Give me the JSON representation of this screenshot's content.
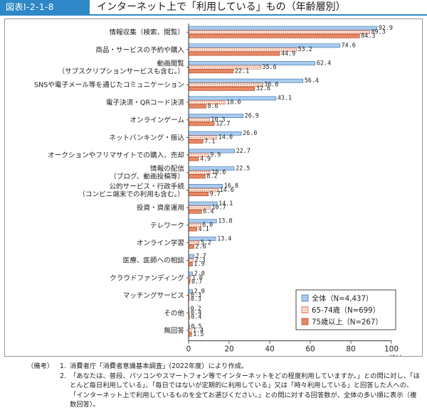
{
  "figure_label": "図表Ⅰ-2-1-8",
  "figure_title": "インターネット上で「利用している」もの（年齢層別）",
  "notes": {
    "key": "（備考）",
    "items": [
      {
        "num": "1.",
        "text": "消費者庁「消費者意識基本調査」(2022年度）により作成。"
      },
      {
        "num": "2.",
        "text": "「あなたは、普段、パソコンやスマートフォン等でインターネットをどの程度利用していますか。」との問に対し、「ほとんど毎日利用している」、「毎日ではないが定期的に利用している」又は「時々利用している」と回答した人への、「インターネット上で利用しているものを全てお選びください。」との問に対する回答数が、全体の多い順に表示（複数回答）。"
      }
    ]
  },
  "chart_data": {
    "type": "bar",
    "orientation": "horizontal",
    "categories": [
      [
        "情報収集（検索、閲覧）"
      ],
      [
        "商品・サービスの予約や購入"
      ],
      [
        "動画閲覧",
        "（サブスクリプションサービスも含む。）"
      ],
      [
        "SNSや電子メール等を通じたコミュニケーション"
      ],
      [
        "電子決済・QRコード決済"
      ],
      [
        "オンラインゲーム"
      ],
      [
        "ネットバンキング・振込"
      ],
      [
        "オークションやフリマサイトでの購入、売却"
      ],
      [
        "情報の配信",
        "（ブログ、動画投稿等）"
      ],
      [
        "公的サービス・行政手続",
        "（コンビニ端末での利用も含む。）"
      ],
      [
        "投資・資産運用"
      ],
      [
        "テレワーク"
      ],
      [
        "オンライン学習"
      ],
      [
        "医療、医師への相談"
      ],
      [
        "クラウドファンディング"
      ],
      [
        "マッチングサービス"
      ],
      [
        "その他"
      ],
      [
        "無回答"
      ]
    ],
    "series": [
      {
        "name": "全体（N=4,437）",
        "color": "#a9cbef",
        "pattern": "solid",
        "values": [
          92.9,
          74.6,
          62.4,
          56.4,
          43.1,
          26.9,
          26.0,
          22.7,
          22.5,
          16.8,
          14.1,
          13.8,
          13.4,
          2.7,
          2.0,
          2.0,
          0.2,
          0.5
        ]
      },
      {
        "name": "65-74歳（N=699）",
        "color": "#f2c9b8",
        "pattern": "dots",
        "values": [
          89.3,
          53.2,
          35.6,
          36.6,
          18.0,
          10.3,
          14.0,
          9.9,
          10.6,
          14.6,
          10.7,
          6.0,
          5.2,
          2.3,
          1.0,
          0.3,
          0.4,
          1.4
        ]
      },
      {
        "name": "75歳以上（N=267）",
        "color": "#f08a60",
        "pattern": "hatch",
        "values": [
          84.3,
          44.9,
          22.1,
          32.6,
          8.6,
          12.7,
          7.1,
          4.9,
          8.2,
          9.7,
          6.4,
          4.1,
          2.6,
          1.9,
          0.7,
          0.3,
          0.4,
          1.5
        ]
      }
    ],
    "xlim": [
      0,
      100
    ],
    "xticks": [
      0,
      20,
      40,
      60,
      80,
      100
    ],
    "xunit": "(%)",
    "grid": false,
    "legend_position": "bottom-right"
  }
}
